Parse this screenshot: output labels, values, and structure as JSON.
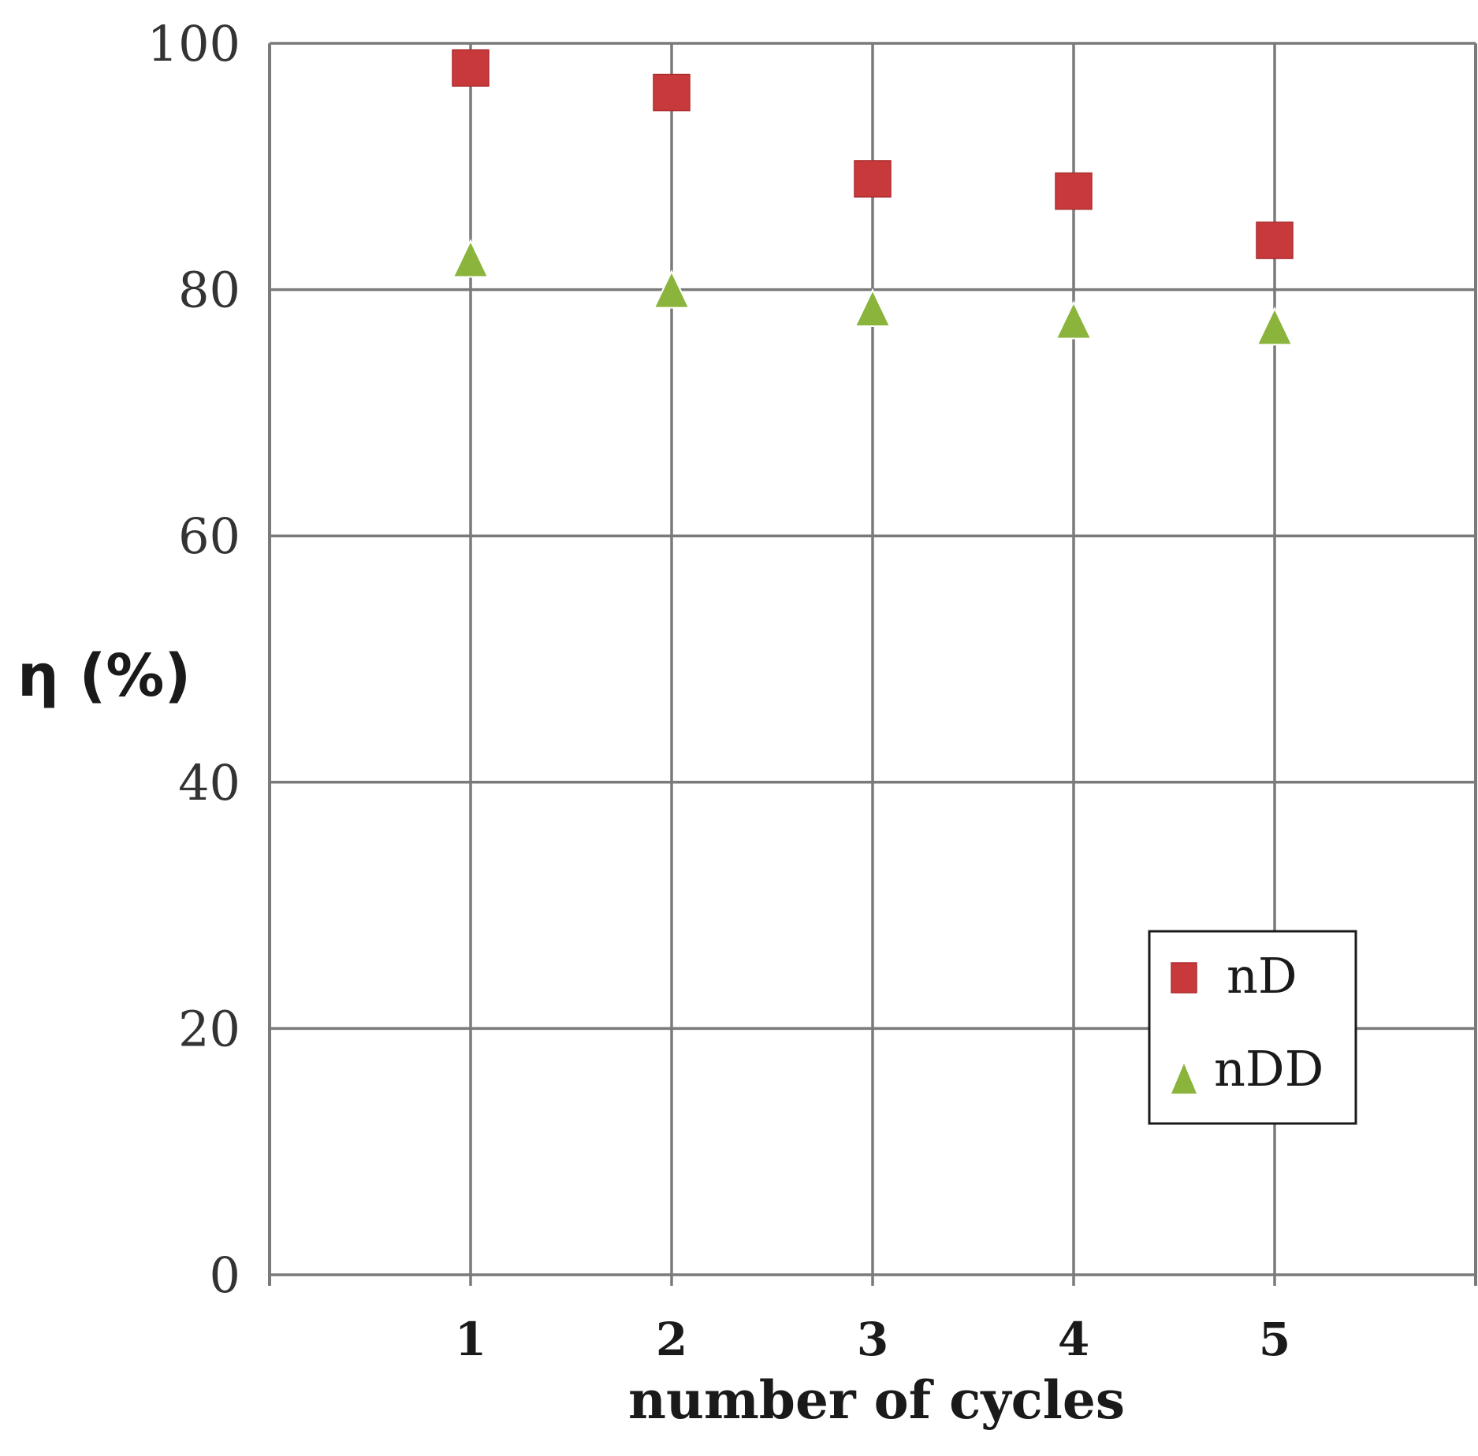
{
  "chart_data": {
    "type": "scatter",
    "title": "",
    "xlabel": "number of cycles",
    "ylabel": "η (%)",
    "x": [
      1,
      2,
      3,
      4,
      5
    ],
    "xticks": [
      "1",
      "2",
      "3",
      "4",
      "5"
    ],
    "yticks": [
      "0",
      "20",
      "40",
      "60",
      "80",
      "100"
    ],
    "ylim": [
      0,
      100
    ],
    "xlim": [
      0,
      6
    ],
    "grid": true,
    "legend_position": "lower-right",
    "series": [
      {
        "name": "nD",
        "marker": "square",
        "color": "#c8393b",
        "values": [
          98,
          96,
          89,
          88,
          84
        ]
      },
      {
        "name": "nDD",
        "marker": "triangle",
        "color": "#8ab43c",
        "values": [
          82.5,
          80,
          78.5,
          77.5,
          77
        ]
      }
    ]
  }
}
